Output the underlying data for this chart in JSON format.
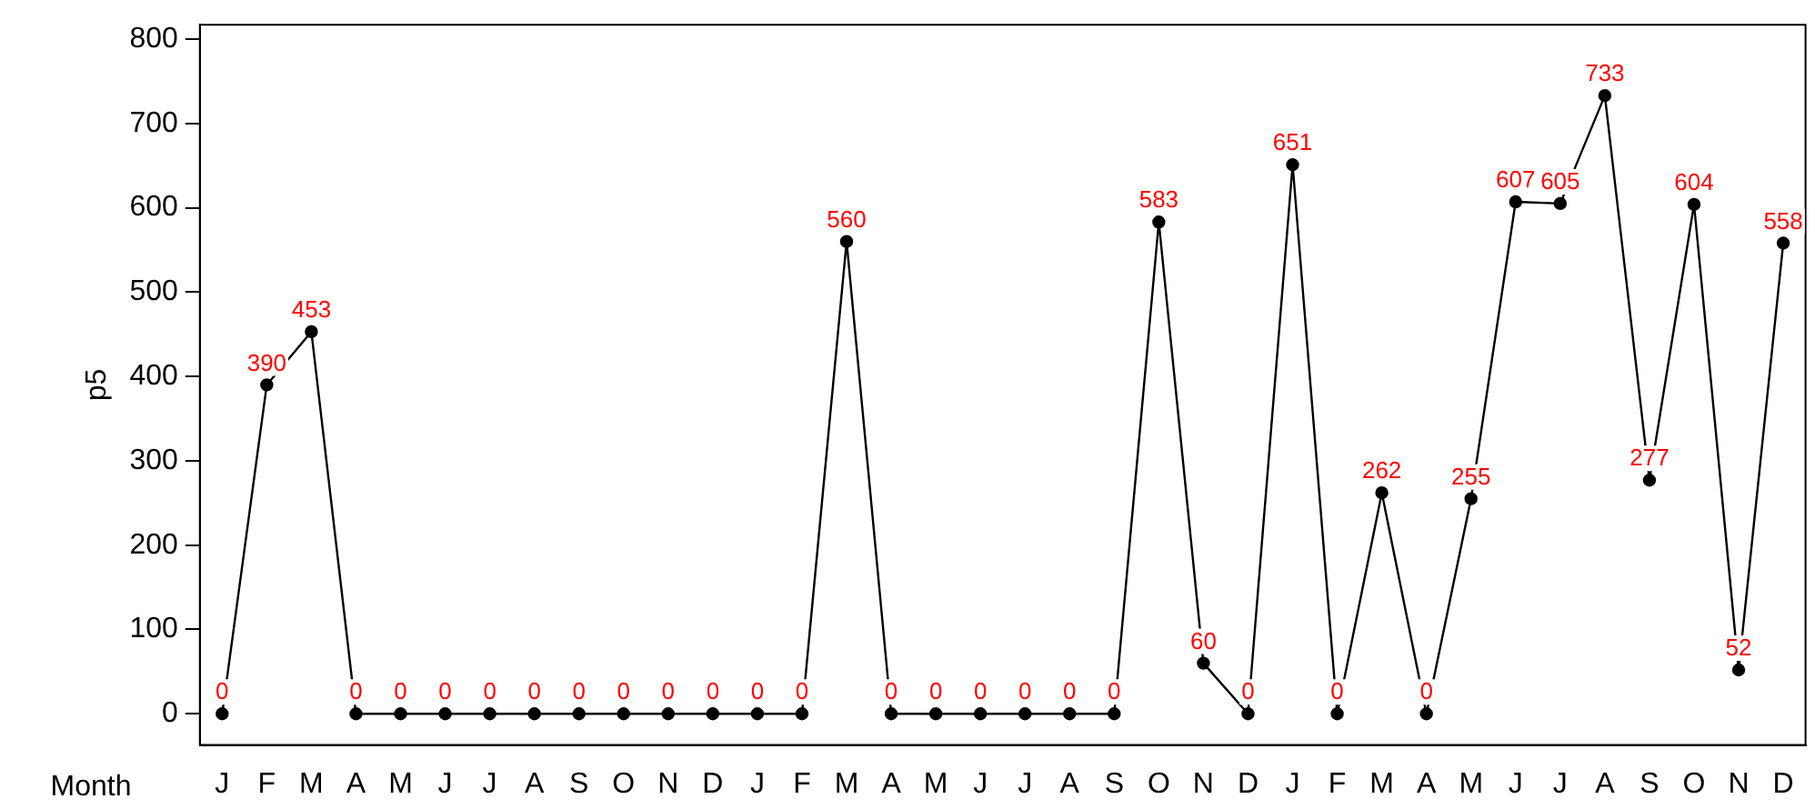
{
  "chart_data": {
    "type": "line",
    "xlabel": "Month",
    "ylabel": "p5",
    "categories": [
      "J",
      "F",
      "M",
      "A",
      "M",
      "J",
      "J",
      "A",
      "S",
      "O",
      "N",
      "D",
      "J",
      "F",
      "M",
      "A",
      "M",
      "J",
      "J",
      "A",
      "S",
      "O",
      "N",
      "D",
      "J",
      "F",
      "M",
      "A",
      "M",
      "J",
      "J",
      "A",
      "S",
      "O",
      "N",
      "D"
    ],
    "series": [
      {
        "color": "#000000",
        "values": [
          0,
          390,
          453,
          0,
          0,
          0,
          0,
          0,
          0,
          0,
          0,
          0,
          0,
          0,
          560,
          0,
          0,
          0,
          0,
          0,
          0,
          583,
          60,
          0,
          651,
          0,
          262,
          0,
          255,
          607,
          605,
          733,
          277,
          604,
          52,
          558
        ]
      }
    ],
    "ylim": [
      -37,
      817
    ],
    "yticks": [
      0,
      100,
      200,
      300,
      400,
      500,
      600,
      700,
      800
    ],
    "data_labels": true,
    "grid": false,
    "legend": false,
    "marker": "circle",
    "line_style": "solid"
  }
}
